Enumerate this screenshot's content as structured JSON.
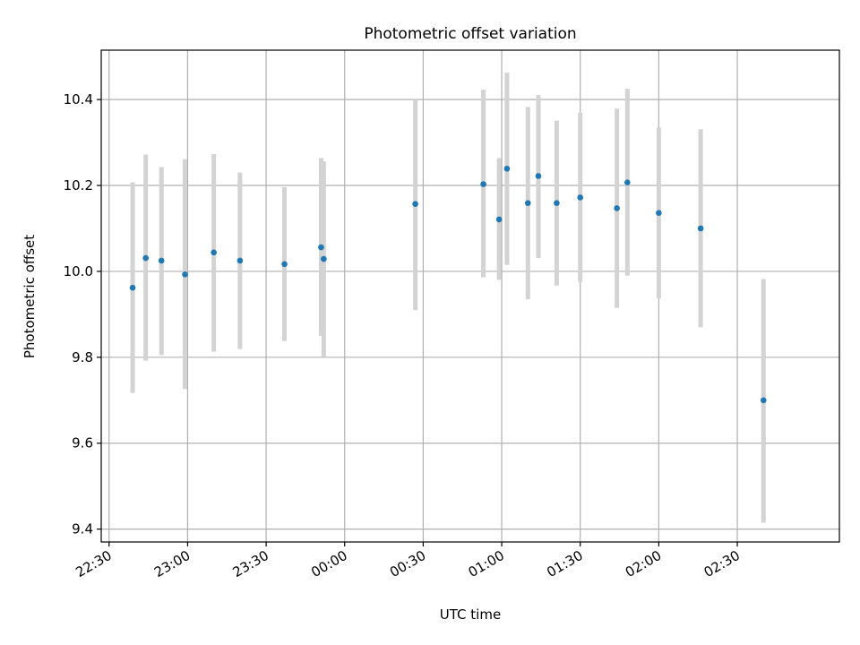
{
  "chart_data": {
    "type": "scatter",
    "title": "Photometric offset variation",
    "xlabel": "UTC time",
    "ylabel": "Photometric offset",
    "x_tick_labels": [
      "22:30",
      "23:00",
      "23:30",
      "00:00",
      "00:30",
      "01:00",
      "01:30",
      "02:00",
      "02:30"
    ],
    "y_tick_labels": [
      "9.4",
      "9.6",
      "9.8",
      "10.0",
      "10.2",
      "10.4"
    ],
    "y_ticks": [
      9.4,
      9.6,
      9.8,
      10.0,
      10.2,
      10.4
    ],
    "xlim": [
      "22:27",
      "03:09"
    ],
    "ylim": [
      9.37,
      10.515
    ],
    "grid": true,
    "marker_color": "#1f77b4",
    "errorbar_color": "#d3d3d3",
    "points": [
      {
        "time": "22:39",
        "y": 9.962,
        "lower": 9.717,
        "upper": 10.207
      },
      {
        "time": "22:44",
        "y": 10.031,
        "lower": 9.792,
        "upper": 10.272
      },
      {
        "time": "22:50",
        "y": 10.025,
        "lower": 9.805,
        "upper": 10.243
      },
      {
        "time": "22:59",
        "y": 9.993,
        "lower": 9.726,
        "upper": 10.261
      },
      {
        "time": "23:10",
        "y": 10.044,
        "lower": 9.813,
        "upper": 10.273
      },
      {
        "time": "23:20",
        "y": 10.025,
        "lower": 9.819,
        "upper": 10.23
      },
      {
        "time": "23:37",
        "y": 10.017,
        "lower": 9.838,
        "upper": 10.196
      },
      {
        "time": "23:51",
        "y": 10.056,
        "lower": 9.85,
        "upper": 10.264
      },
      {
        "time": "23:52",
        "y": 10.029,
        "lower": 9.802,
        "upper": 10.256
      },
      {
        "time": "00:27",
        "y": 10.157,
        "lower": 9.91,
        "upper": 10.4
      },
      {
        "time": "00:53",
        "y": 10.203,
        "lower": 9.986,
        "upper": 10.423
      },
      {
        "time": "00:59",
        "y": 10.121,
        "lower": 9.98,
        "upper": 10.264
      },
      {
        "time": "01:02",
        "y": 10.239,
        "lower": 10.015,
        "upper": 10.463
      },
      {
        "time": "01:10",
        "y": 10.159,
        "lower": 9.935,
        "upper": 10.383
      },
      {
        "time": "01:14",
        "y": 10.222,
        "lower": 10.031,
        "upper": 10.411
      },
      {
        "time": "01:21",
        "y": 10.159,
        "lower": 9.967,
        "upper": 10.351
      },
      {
        "time": "01:30",
        "y": 10.172,
        "lower": 9.975,
        "upper": 10.369
      },
      {
        "time": "01:44",
        "y": 10.147,
        "lower": 9.915,
        "upper": 10.379
      },
      {
        "time": "01:48",
        "y": 10.207,
        "lower": 9.99,
        "upper": 10.425
      },
      {
        "time": "02:00",
        "y": 10.136,
        "lower": 9.937,
        "upper": 10.335
      },
      {
        "time": "02:16",
        "y": 10.1,
        "lower": 9.87,
        "upper": 10.331
      },
      {
        "time": "02:40",
        "y": 9.7,
        "lower": 9.415,
        "upper": 9.982
      }
    ]
  }
}
